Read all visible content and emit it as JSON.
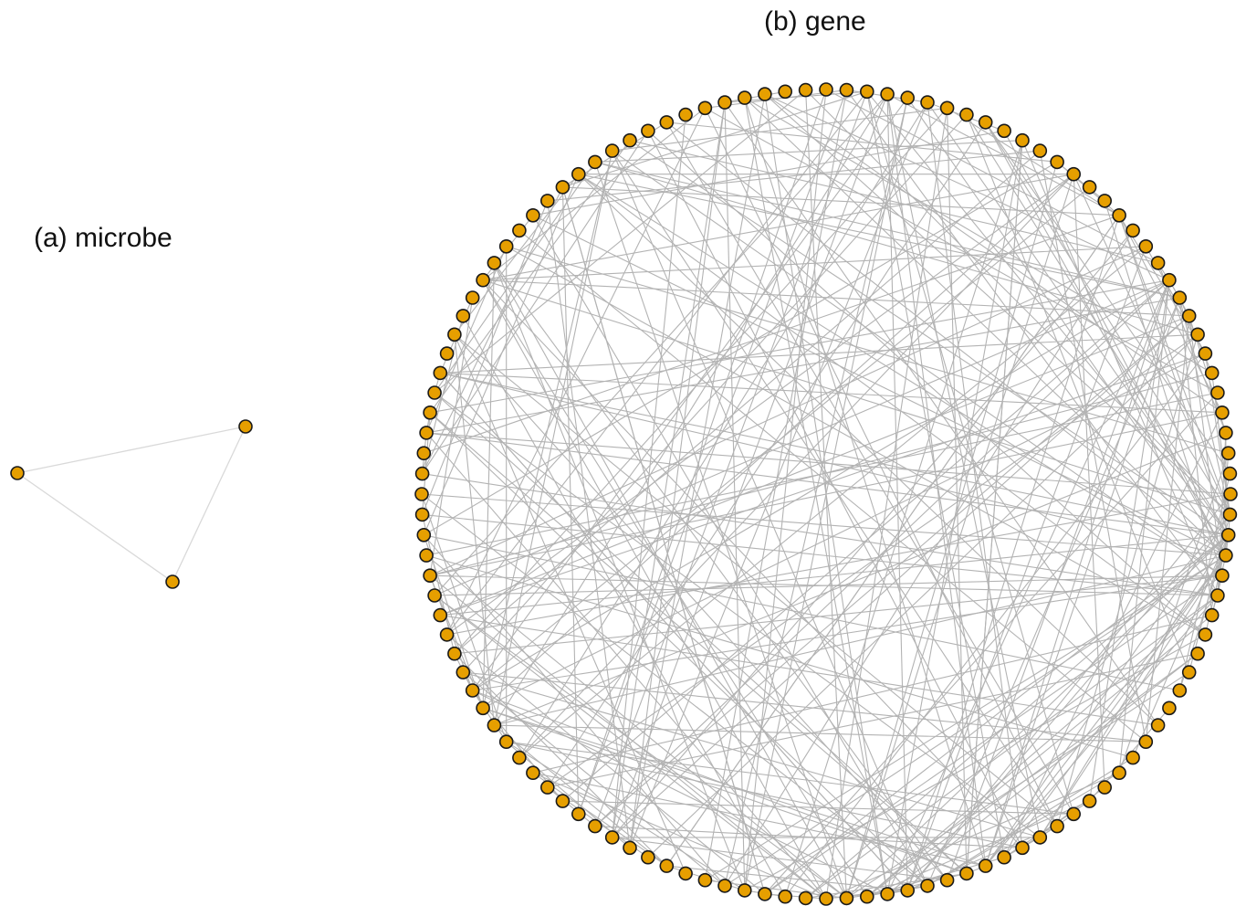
{
  "panels": [
    {
      "id": "a",
      "title": "(a) microbe",
      "layout": "free",
      "node_count": 3,
      "edges": [
        [
          0,
          1
        ],
        [
          0,
          2
        ],
        [
          1,
          2
        ]
      ]
    },
    {
      "id": "b",
      "title": "(b) gene",
      "layout": "circle",
      "node_count": 124,
      "edge_count": 330
    }
  ],
  "colors": {
    "node_fill": "#E69F00",
    "node_stroke": "#1a1a1a",
    "edge_microbe": "#d9d9d9",
    "edge_gene": "#b3b3b3",
    "background": "#ffffff"
  }
}
